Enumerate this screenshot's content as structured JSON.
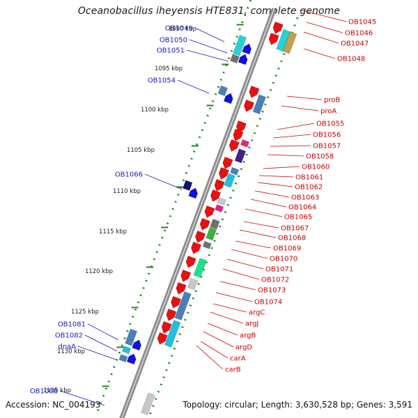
{
  "title": "Oceanobacillus iheyensis HTE831, complete genome",
  "accession": "Accession: NC_004193",
  "summary": "Topology: circular; Length: 3,630,528 bp; Genes: 3,591",
  "kbp_labels": [
    "1090 kbp",
    "1095 kbp",
    "1100 kbp",
    "1105 kbp",
    "1110 kbp",
    "1115 kbp",
    "1120 kbp",
    "1125 kbp",
    "1130 kbp",
    "1135 kbp"
  ],
  "left_labels": [
    "OB1049",
    "OB1050",
    "OB1051",
    "OB1054",
    "OB1066",
    "OB1081",
    "OB1082",
    "dnaA",
    "OB1088"
  ],
  "right_labels": [
    "OB1045",
    "OB1046",
    "OB1047",
    "OB1048",
    "proB",
    "proA",
    "OB1055",
    "OB1056",
    "OB1057",
    "OB1058",
    "OB1060",
    "OB1061",
    "OB1062",
    "OB1063",
    "OB1064",
    "OB1065",
    "OB1067",
    "OB1068",
    "OB1069",
    "OB1070",
    "OB1071",
    "OB1072",
    "OB1073",
    "OB1074",
    "argC",
    "argJ",
    "argB",
    "argD",
    "carA",
    "carB"
  ],
  "colors": {
    "forward": "#e81010",
    "reverse": "#1010e0",
    "left_label": "#1a1ac0",
    "right_label": "#cc0000",
    "backbone": "#8c8c8c",
    "ticks": "#1a8a1a"
  }
}
